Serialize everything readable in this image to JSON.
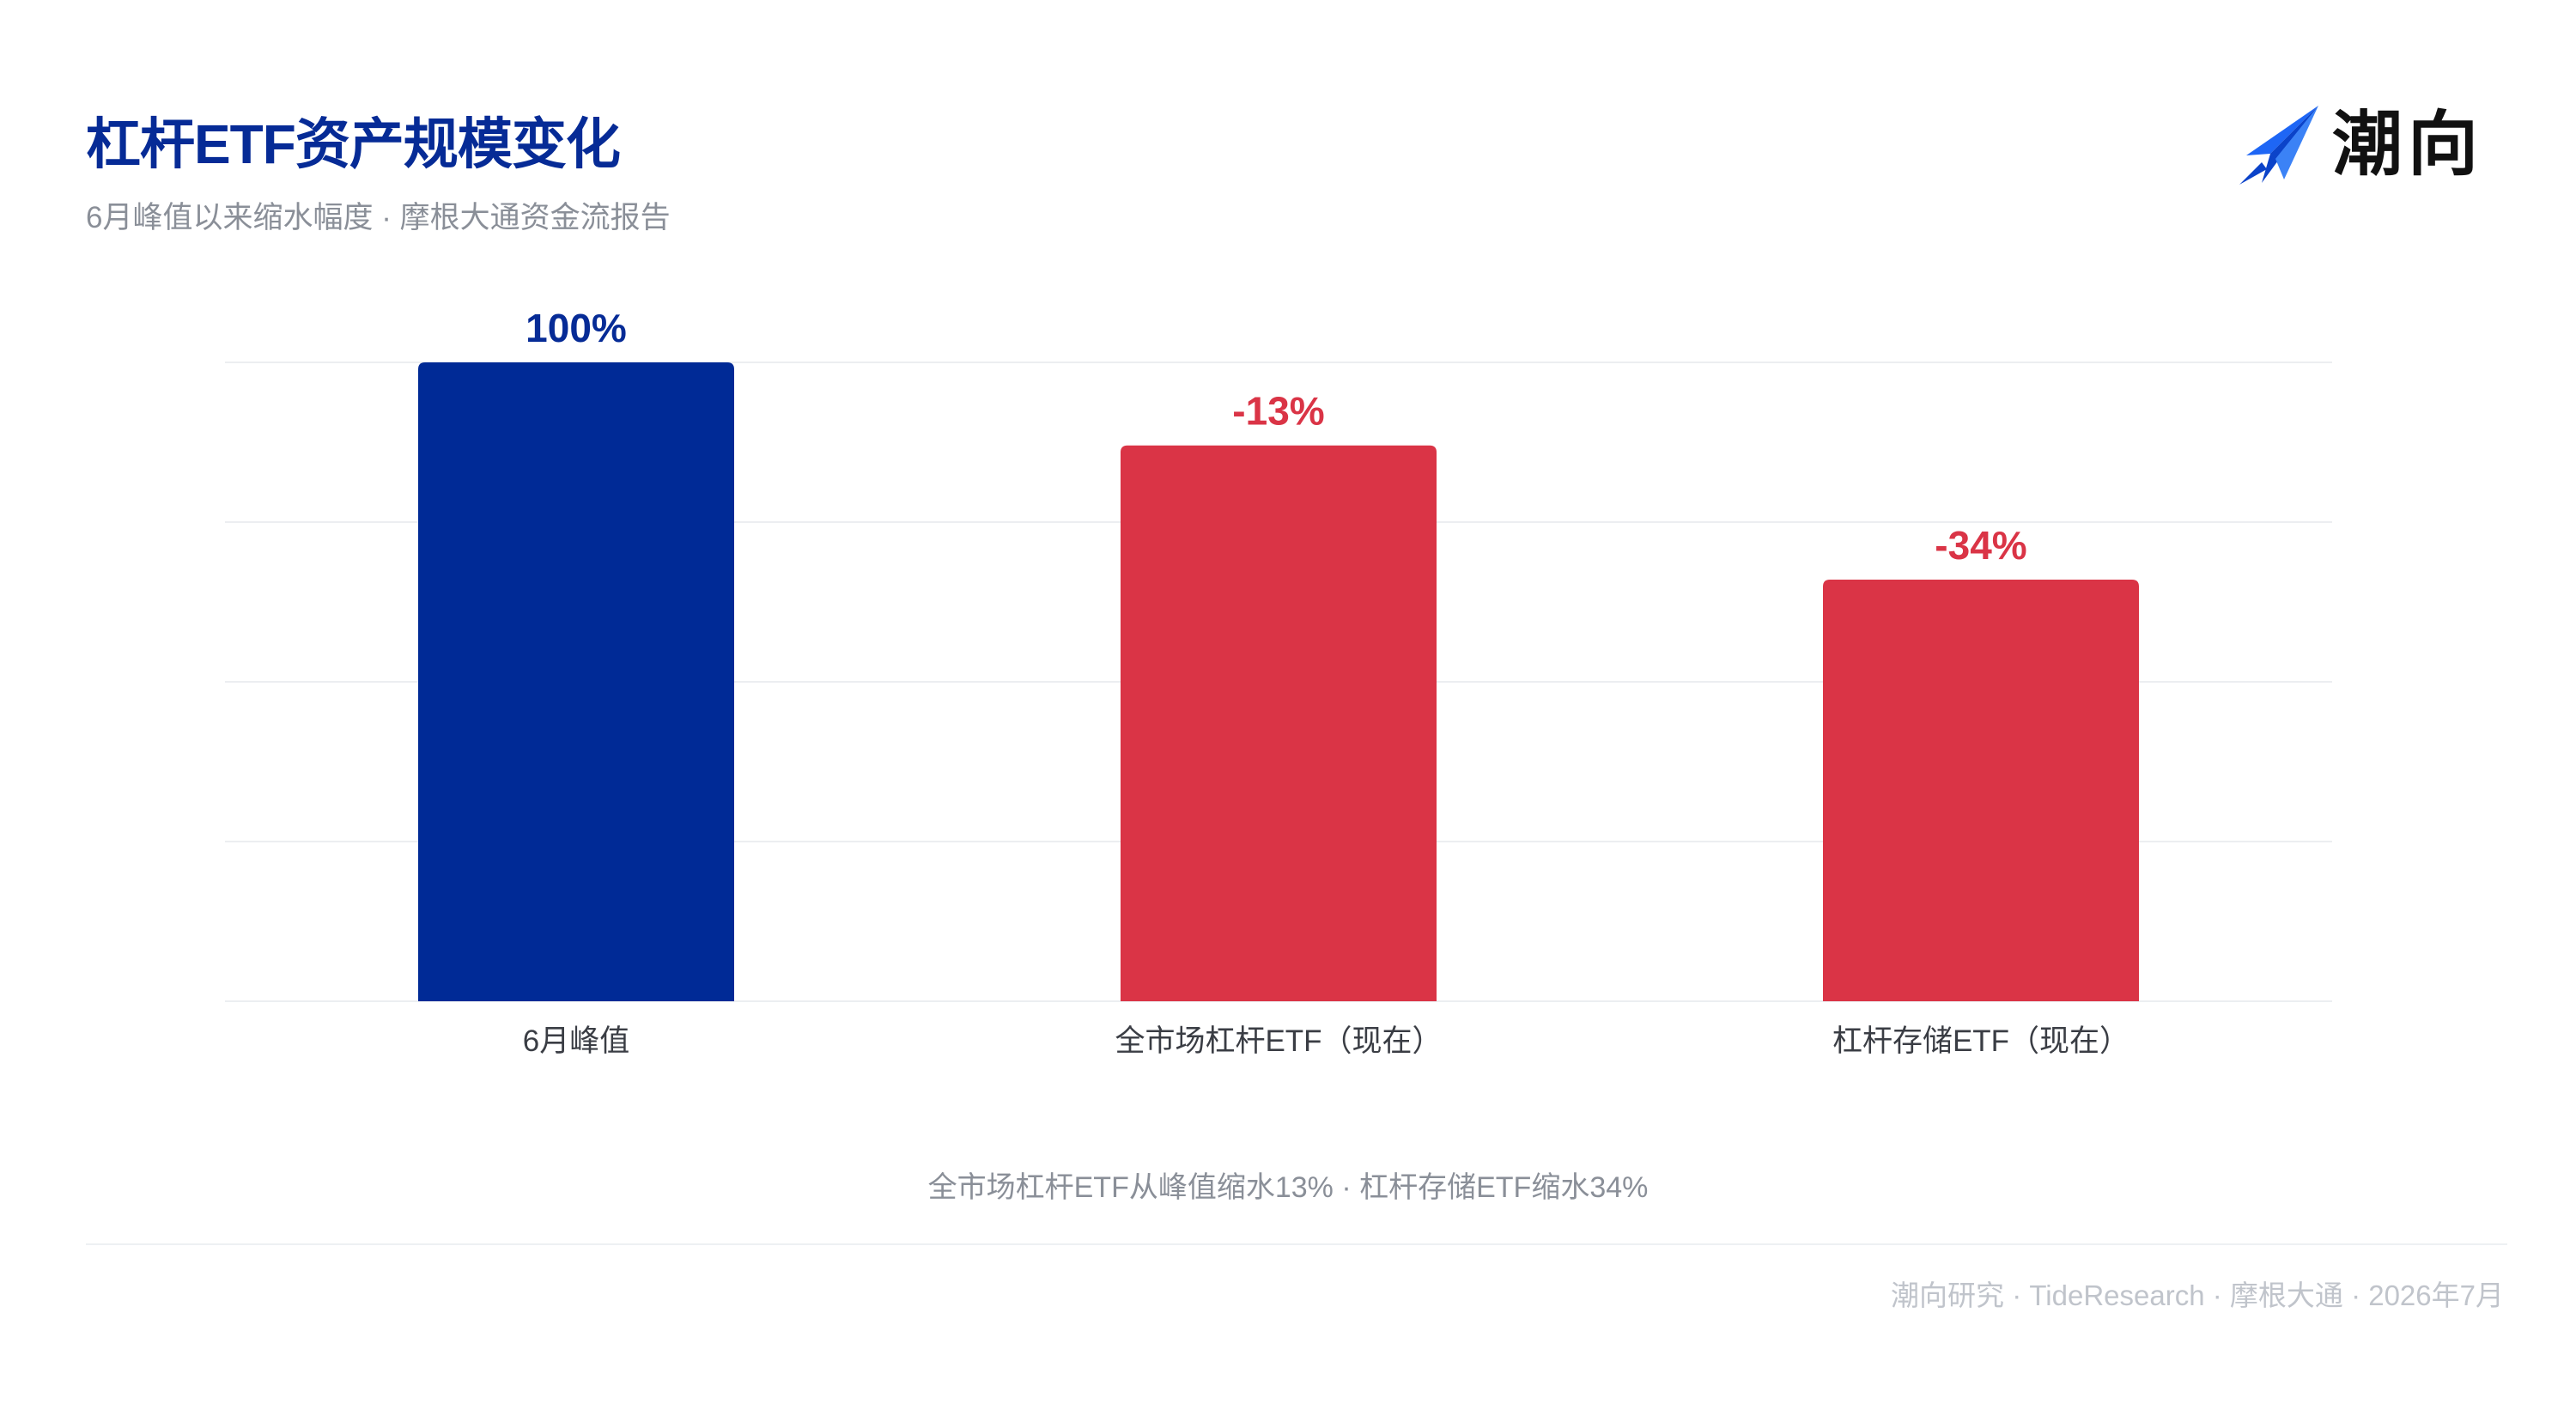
{
  "header": {
    "title": "杠杆ETF资产规模变化",
    "subtitle": "6月峰值以来缩水幅度 · 摩根大通资金流报告"
  },
  "logo": {
    "icon": "paper-plane-icon",
    "text": "潮向"
  },
  "chart_data": {
    "type": "bar",
    "categories": [
      "6月峰值",
      "全市场杠杆ETF（现在）",
      "杠杆存储ETF（现在）"
    ],
    "values": [
      100,
      87,
      66
    ],
    "data_labels": [
      "100%",
      "-13%",
      "-34%"
    ],
    "colors": [
      "#002a96",
      "#da3446",
      "#da3446"
    ],
    "ylim": [
      0,
      100
    ],
    "grid": true,
    "legend": "none"
  },
  "caption": "全市场杠杆ETF从峰值缩水13% · 杠杆存储ETF缩水34%",
  "footer": "潮向研究 · TideResearch · 摩根大通 · 2026年7月",
  "colors": {
    "title": "#062b96",
    "peak_bar": "#002a96",
    "decline_bar": "#da3446",
    "muted_text": "#8a8f98",
    "gridline": "#eceef1",
    "logo_blue": "#1e66f5"
  }
}
